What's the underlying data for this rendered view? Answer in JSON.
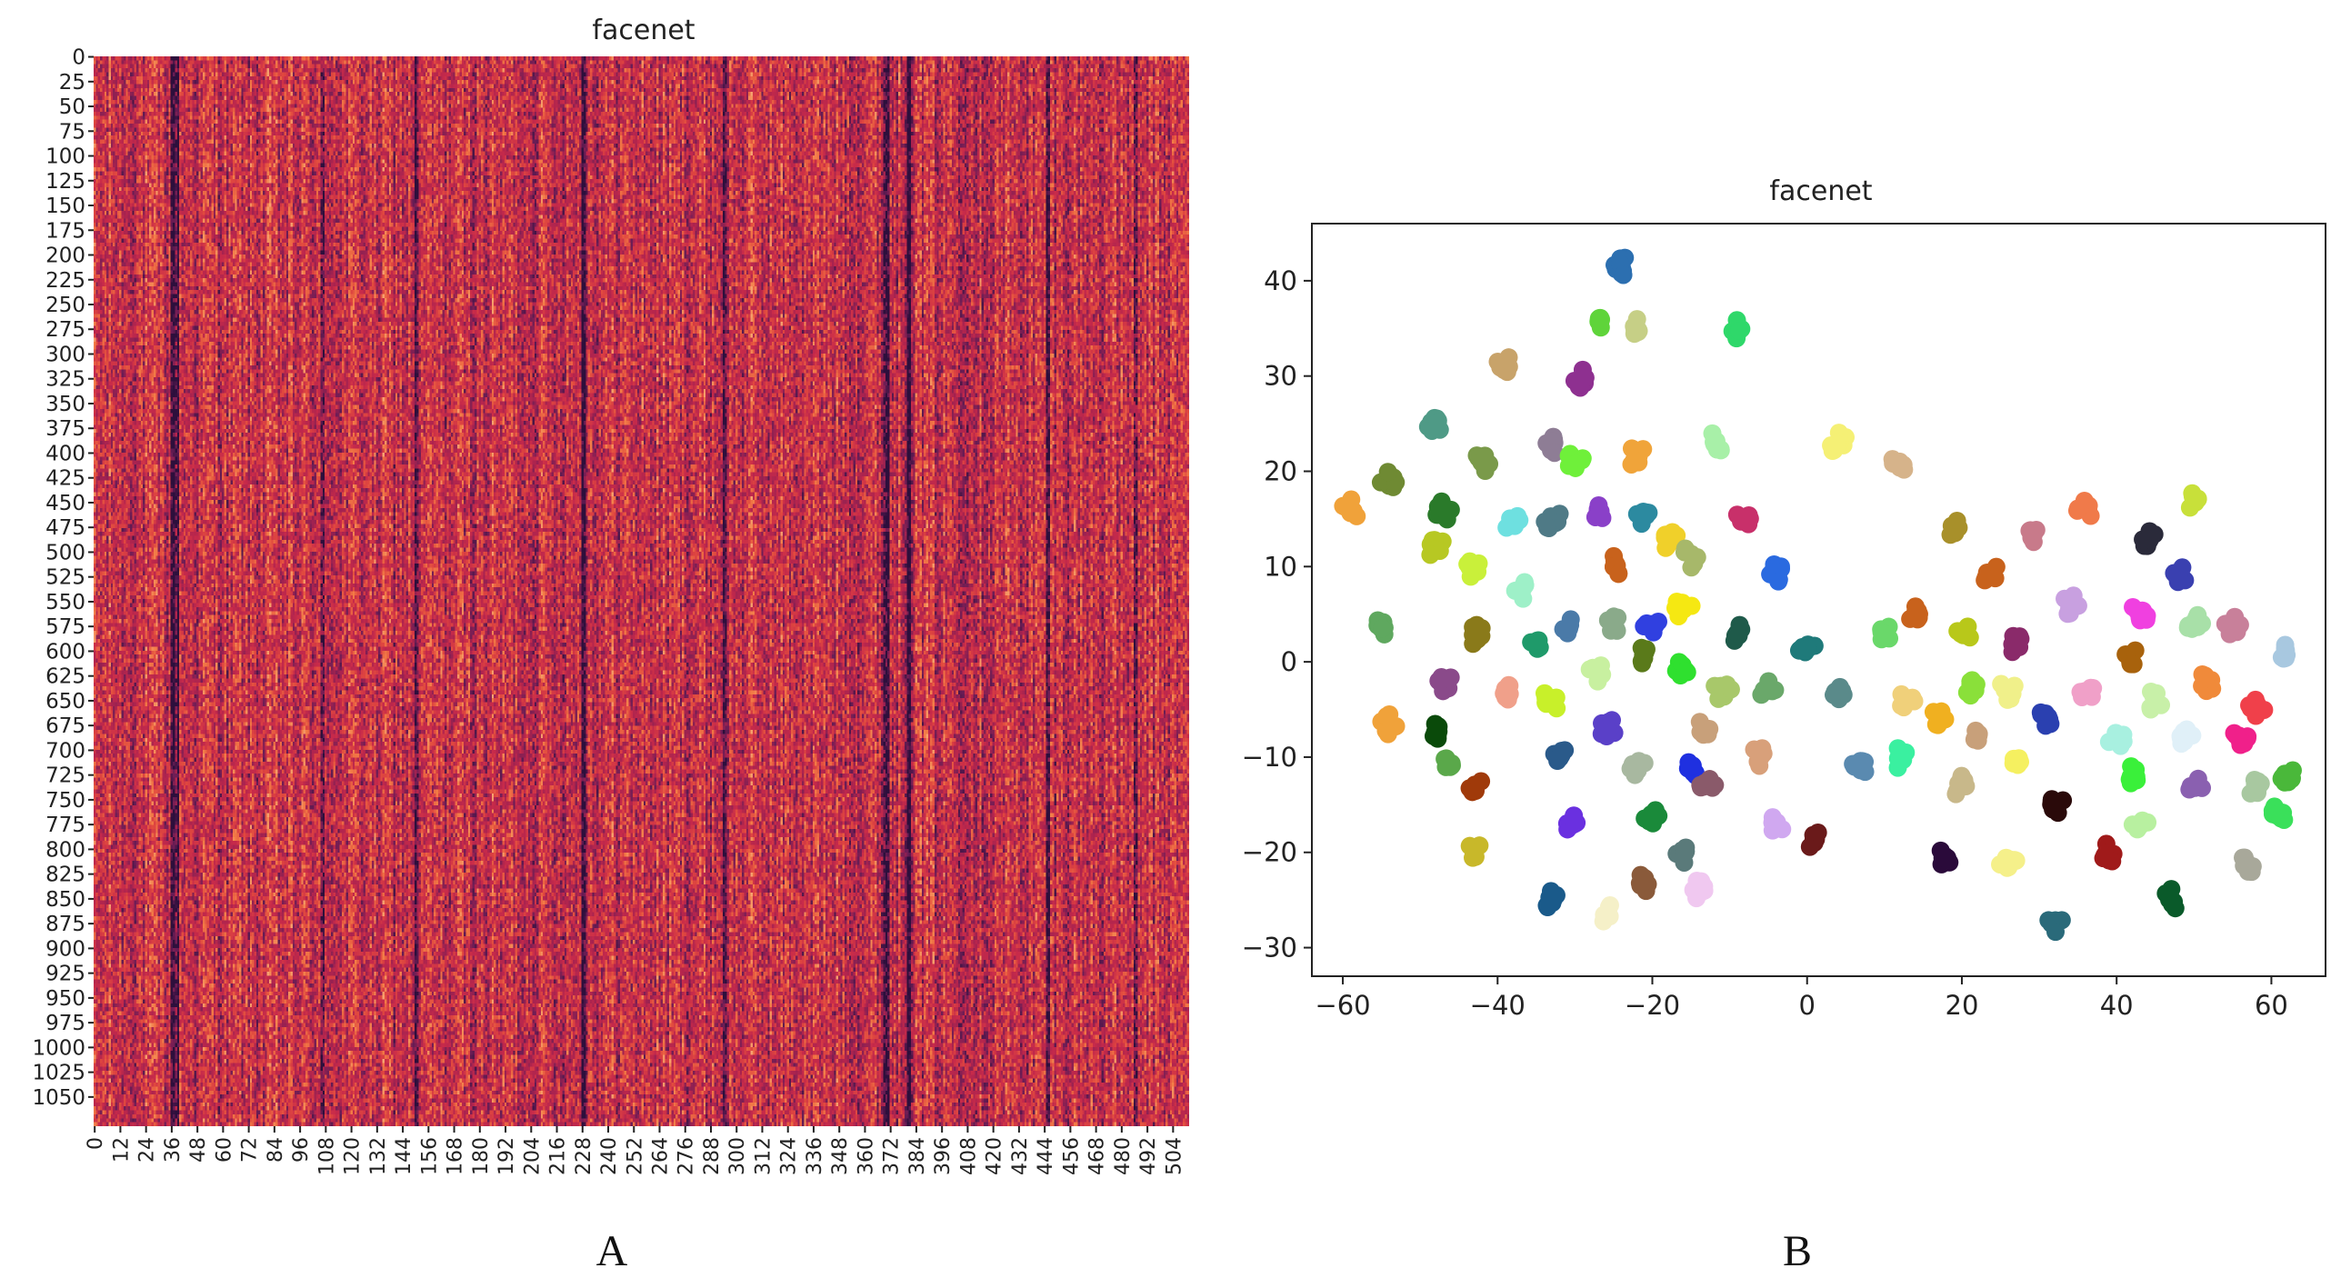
{
  "figure": {
    "panel_a_letter": "A",
    "panel_b_letter": "B"
  },
  "chart_data": [
    {
      "type": "heatmap",
      "title": "facenet",
      "xlabel": "",
      "ylabel": "",
      "n_rows": 1080,
      "n_cols": 512,
      "y_ticks": [
        "0",
        "25",
        "50",
        "75",
        "100",
        "125",
        "150",
        "175",
        "200",
        "225",
        "250",
        "275",
        "300",
        "325",
        "350",
        "375",
        "400",
        "425",
        "450",
        "475",
        "500",
        "525",
        "550",
        "575",
        "600",
        "625",
        "650",
        "675",
        "700",
        "725",
        "750",
        "775",
        "800",
        "825",
        "850",
        "875",
        "900",
        "925",
        "950",
        "975",
        "1000",
        "1025",
        "1050"
      ],
      "x_ticks": [
        "0",
        "12",
        "24",
        "36",
        "48",
        "60",
        "72",
        "84",
        "96",
        "108",
        "120",
        "132",
        "144",
        "156",
        "168",
        "180",
        "192",
        "204",
        "216",
        "228",
        "240",
        "252",
        "264",
        "276",
        "288",
        "300",
        "312",
        "324",
        "336",
        "348",
        "360",
        "372",
        "384",
        "396",
        "408",
        "420",
        "432",
        "444",
        "456",
        "468",
        "480",
        "492",
        "504"
      ],
      "dark_column_bands": [
        36,
        37,
        38,
        39,
        106,
        107,
        150,
        151,
        228,
        229,
        294,
        295,
        369,
        370,
        371,
        380,
        381,
        445,
        446,
        486,
        487
      ],
      "colormap": [
        "#2d0f3c",
        "#6b1d55",
        "#a9234f",
        "#c72a4a",
        "#e0483f",
        "#f27b46",
        "#f9b785"
      ]
    },
    {
      "type": "scatter",
      "title": "facenet",
      "xlabel": "",
      "ylabel": "",
      "xlim": [
        -64,
        67
      ],
      "ylim": [
        -33,
        46
      ],
      "x_ticks": [
        -60,
        -40,
        -20,
        0,
        20,
        40,
        60
      ],
      "y_ticks": [
        -30,
        -20,
        -10,
        0,
        10,
        20,
        30,
        40
      ],
      "x_tick_labels": [
        "−60",
        "−40",
        "−20",
        "0",
        "20",
        "40",
        "60"
      ],
      "y_tick_labels": [
        "−30",
        "−20",
        "−10",
        "0",
        "10",
        "20",
        "30",
        "40"
      ],
      "clusters": [
        {
          "x": -24,
          "y": 41.5,
          "color": "#2c6fb0"
        },
        {
          "x": -27,
          "y": 36,
          "color": "#5fd43a"
        },
        {
          "x": -22,
          "y": 35,
          "color": "#c6cf86"
        },
        {
          "x": -9,
          "y": 35,
          "color": "#2fd86a"
        },
        {
          "x": -39,
          "y": 31,
          "color": "#c8a36a"
        },
        {
          "x": -29,
          "y": 29.5,
          "color": "#8e3090"
        },
        {
          "x": -48,
          "y": 25,
          "color": "#4f9a86"
        },
        {
          "x": -42,
          "y": 21,
          "color": "#7a9a4a"
        },
        {
          "x": -33,
          "y": 23,
          "color": "#8e7d95"
        },
        {
          "x": -30,
          "y": 21,
          "color": "#6ff03a"
        },
        {
          "x": -22,
          "y": 21.5,
          "color": "#f0a43a"
        },
        {
          "x": -12,
          "y": 23,
          "color": "#a8f0a8"
        },
        {
          "x": 4,
          "y": 23,
          "color": "#f5f075"
        },
        {
          "x": 12,
          "y": 21,
          "color": "#d6b38a"
        },
        {
          "x": -54,
          "y": 19,
          "color": "#6f8a33"
        },
        {
          "x": -59,
          "y": 16,
          "color": "#f0a23a"
        },
        {
          "x": -47,
          "y": 16,
          "color": "#2a7a2a"
        },
        {
          "x": -27,
          "y": 16,
          "color": "#8a40c8"
        },
        {
          "x": -21,
          "y": 15.5,
          "color": "#2c8aa0"
        },
        {
          "x": -8,
          "y": 15,
          "color": "#c8306a"
        },
        {
          "x": -38,
          "y": 14.5,
          "color": "#6ee0e0"
        },
        {
          "x": -33,
          "y": 15,
          "color": "#4f7a86"
        },
        {
          "x": -48,
          "y": 12,
          "color": "#b7c823"
        },
        {
          "x": -43,
          "y": 10,
          "color": "#c9f03a"
        },
        {
          "x": -25,
          "y": 10,
          "color": "#c8621c"
        },
        {
          "x": -18,
          "y": 13,
          "color": "#f0d02a"
        },
        {
          "x": -15,
          "y": 11,
          "color": "#a7b86a"
        },
        {
          "x": -4,
          "y": 9.5,
          "color": "#2a6ae0"
        },
        {
          "x": 19,
          "y": 14,
          "color": "#a8902a"
        },
        {
          "x": 24,
          "y": 9,
          "color": "#c8621c"
        },
        {
          "x": 29,
          "y": 13,
          "color": "#c87a8a"
        },
        {
          "x": 36,
          "y": 16,
          "color": "#f07a4a"
        },
        {
          "x": 44,
          "y": 13,
          "color": "#2a2a3a"
        },
        {
          "x": 50,
          "y": 17,
          "color": "#c8e03a"
        },
        {
          "x": 48,
          "y": 9,
          "color": "#3a40b0"
        },
        {
          "x": -37,
          "y": 7.5,
          "color": "#9ef0c8"
        },
        {
          "x": -16,
          "y": 5.5,
          "color": "#f5e812"
        },
        {
          "x": -55,
          "y": 3.5,
          "color": "#5fa85f"
        },
        {
          "x": -43,
          "y": 3,
          "color": "#8a7a1a"
        },
        {
          "x": -35,
          "y": 2,
          "color": "#1f9a6a"
        },
        {
          "x": -31,
          "y": 3.5,
          "color": "#4a7aa8"
        },
        {
          "x": -25,
          "y": 4,
          "color": "#8aaa8a"
        },
        {
          "x": -20,
          "y": 4,
          "color": "#3040e0"
        },
        {
          "x": -9,
          "y": 3,
          "color": "#1f5a4a"
        },
        {
          "x": 0,
          "y": 1.5,
          "color": "#1f7a7a"
        },
        {
          "x": 10,
          "y": 3,
          "color": "#6ad86a"
        },
        {
          "x": 14,
          "y": 5,
          "color": "#c8621c"
        },
        {
          "x": 20,
          "y": 3,
          "color": "#b8c81a"
        },
        {
          "x": 27,
          "y": 2,
          "color": "#8a2a6a"
        },
        {
          "x": 34,
          "y": 6,
          "color": "#c8a0e0"
        },
        {
          "x": 43,
          "y": 5,
          "color": "#f040e0"
        },
        {
          "x": 42,
          "y": 0.5,
          "color": "#a8620c"
        },
        {
          "x": 50,
          "y": 4,
          "color": "#a8e0a8"
        },
        {
          "x": 55,
          "y": 4,
          "color": "#c8809a"
        },
        {
          "x": 62,
          "y": 1,
          "color": "#a8c8e0"
        },
        {
          "x": -21,
          "y": 0.5,
          "color": "#5a7a1a"
        },
        {
          "x": -16,
          "y": -1,
          "color": "#2fe02f"
        },
        {
          "x": -27,
          "y": -1,
          "color": "#c8f0a0"
        },
        {
          "x": -47,
          "y": -2,
          "color": "#8a4a8a"
        },
        {
          "x": -39,
          "y": -3,
          "color": "#f0a08a"
        },
        {
          "x": -33,
          "y": -4,
          "color": "#c8f02a"
        },
        {
          "x": -11,
          "y": -3,
          "color": "#a8c86a"
        },
        {
          "x": -5,
          "y": -3,
          "color": "#6aa86a"
        },
        {
          "x": 4,
          "y": -3,
          "color": "#5a8a8a"
        },
        {
          "x": 13,
          "y": -4,
          "color": "#f0d07a"
        },
        {
          "x": 21,
          "y": -3,
          "color": "#8ae03a"
        },
        {
          "x": 26,
          "y": -3,
          "color": "#f0f08a"
        },
        {
          "x": 36,
          "y": -3,
          "color": "#f0a0c8"
        },
        {
          "x": 45,
          "y": -4,
          "color": "#c8f0a8"
        },
        {
          "x": 52,
          "y": -2,
          "color": "#f08a3a"
        },
        {
          "x": 58,
          "y": -5,
          "color": "#f0404a"
        },
        {
          "x": -54,
          "y": -6.5,
          "color": "#f0a23a"
        },
        {
          "x": -48,
          "y": -7,
          "color": "#0a4a0a"
        },
        {
          "x": -26,
          "y": -7,
          "color": "#5a40c8"
        },
        {
          "x": -13,
          "y": -7,
          "color": "#c8a07a"
        },
        {
          "x": 17,
          "y": -6,
          "color": "#f0b020"
        },
        {
          "x": 22,
          "y": -8,
          "color": "#c8a07a"
        },
        {
          "x": 31,
          "y": -6,
          "color": "#2a40b0"
        },
        {
          "x": 40,
          "y": -8,
          "color": "#a8f0e0"
        },
        {
          "x": 49,
          "y": -8,
          "color": "#e0f0f8"
        },
        {
          "x": 56,
          "y": -8,
          "color": "#f0208a"
        },
        {
          "x": 62,
          "y": -12,
          "color": "#4ab83a"
        },
        {
          "x": -46,
          "y": -11,
          "color": "#5aa84a"
        },
        {
          "x": -32,
          "y": -10,
          "color": "#2a5a8a"
        },
        {
          "x": -22,
          "y": -11,
          "color": "#a8b8a0"
        },
        {
          "x": -15,
          "y": -11,
          "color": "#1f30e0"
        },
        {
          "x": -6,
          "y": -10,
          "color": "#d8a07a"
        },
        {
          "x": 7,
          "y": -10.5,
          "color": "#5a8ab0"
        },
        {
          "x": 12,
          "y": -10,
          "color": "#3af0a0"
        },
        {
          "x": 27,
          "y": -10.5,
          "color": "#f5f060"
        },
        {
          "x": 42,
          "y": -12,
          "color": "#3af03a"
        },
        {
          "x": 50,
          "y": -13,
          "color": "#8a60b0"
        },
        {
          "x": 58,
          "y": -13,
          "color": "#a8c8a0"
        },
        {
          "x": -43,
          "y": -13,
          "color": "#a03a0a"
        },
        {
          "x": -13,
          "y": -13,
          "color": "#8a5a6a"
        },
        {
          "x": 20,
          "y": -13,
          "color": "#c8b88a"
        },
        {
          "x": -20,
          "y": -16,
          "color": "#1a8a3a"
        },
        {
          "x": -30,
          "y": -17,
          "color": "#6a30e0"
        },
        {
          "x": -4,
          "y": -17,
          "color": "#d0a8f0"
        },
        {
          "x": 32,
          "y": -15,
          "color": "#2a0a0a"
        },
        {
          "x": 43,
          "y": -17,
          "color": "#b8f0a0"
        },
        {
          "x": 61,
          "y": -16,
          "color": "#3ae05a"
        },
        {
          "x": -43,
          "y": -20,
          "color": "#c8b82a"
        },
        {
          "x": -16,
          "y": -20,
          "color": "#5a7a7a"
        },
        {
          "x": 1,
          "y": -18.5,
          "color": "#6a1a1a"
        },
        {
          "x": 18,
          "y": -20.5,
          "color": "#2a0a3a"
        },
        {
          "x": 26,
          "y": -21,
          "color": "#f5f08a"
        },
        {
          "x": 39,
          "y": -20,
          "color": "#a01a1a"
        },
        {
          "x": 57,
          "y": -21,
          "color": "#a8a89a"
        },
        {
          "x": -14,
          "y": -24,
          "color": "#f0c8f0"
        },
        {
          "x": -21,
          "y": -23,
          "color": "#8a5a3a"
        },
        {
          "x": -33,
          "y": -25,
          "color": "#1a5a8a"
        },
        {
          "x": -26,
          "y": -26.5,
          "color": "#f5f0c8"
        },
        {
          "x": 47,
          "y": -25,
          "color": "#0a5a2a"
        },
        {
          "x": 32,
          "y": -27.5,
          "color": "#2a6a7a"
        }
      ]
    }
  ]
}
